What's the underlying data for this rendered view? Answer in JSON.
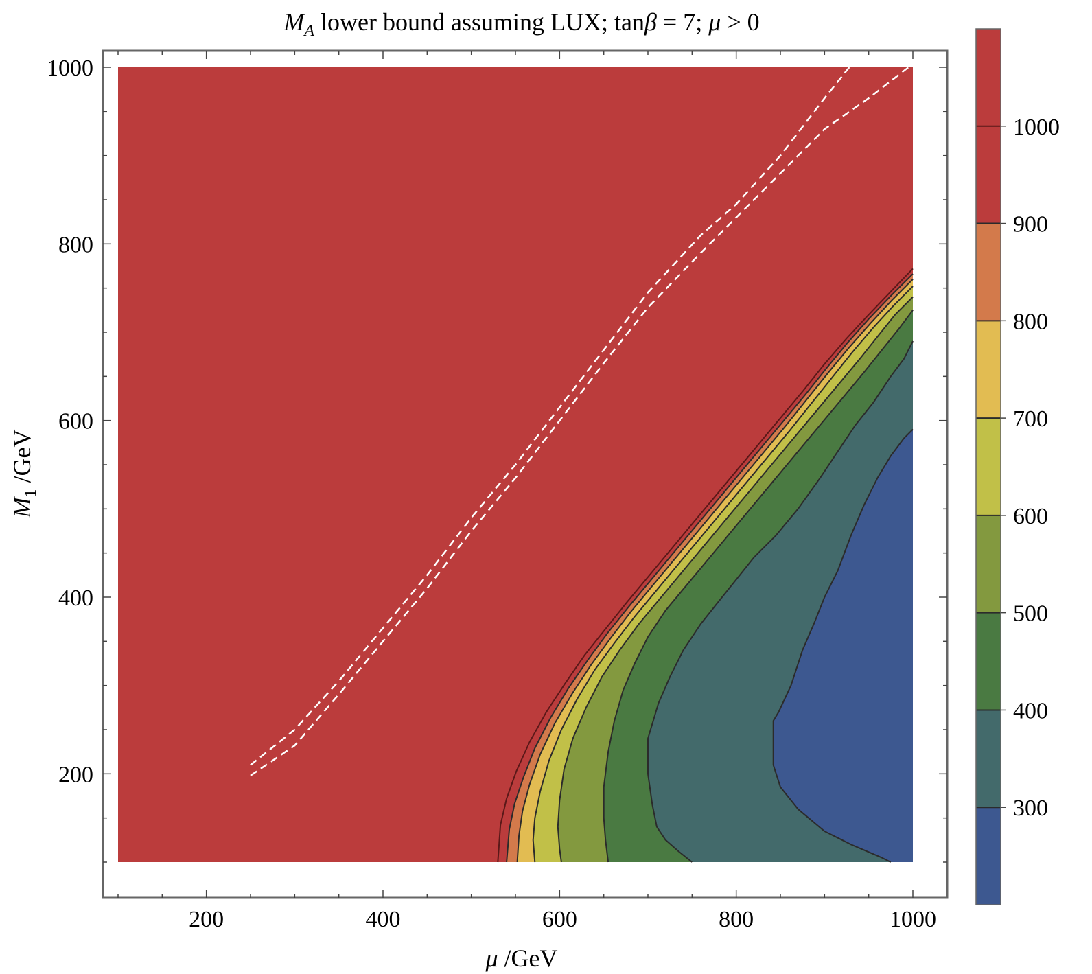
{
  "chart_data": {
    "type": "heatmap",
    "title": {
      "symbol": "M",
      "symbol_sub": "A",
      "text_a": " lower bound assuming LUX; tan",
      "beta": "β",
      "text_b": " = 7; ",
      "mu": "μ",
      "text_c": " > 0"
    },
    "xlabel": {
      "symbol": "μ",
      "unit": " /GeV"
    },
    "ylabel": {
      "symbol": "M",
      "symbol_sub": "1",
      "unit": " /GeV"
    },
    "xlim": [
      100,
      1000
    ],
    "ylim": [
      100,
      1000
    ],
    "x_ticks": [
      {
        "value": 200,
        "label": "200"
      },
      {
        "value": 400,
        "label": "400"
      },
      {
        "value": 600,
        "label": "600"
      },
      {
        "value": 800,
        "label": "800"
      },
      {
        "value": 1000,
        "label": "1000"
      }
    ],
    "y_ticks": [
      {
        "value": 200,
        "label": "200"
      },
      {
        "value": 400,
        "label": "400"
      },
      {
        "value": 600,
        "label": "600"
      },
      {
        "value": 800,
        "label": "800"
      },
      {
        "value": 1000,
        "label": "1000"
      }
    ],
    "colorbar": {
      "range": [
        200,
        1100
      ],
      "levels": [
        {
          "value": 300,
          "label": "300"
        },
        {
          "value": 400,
          "label": "400"
        },
        {
          "value": 500,
          "label": "500"
        },
        {
          "value": 600,
          "label": "600"
        },
        {
          "value": 700,
          "label": "700"
        },
        {
          "value": 800,
          "label": "800"
        },
        {
          "value": 900,
          "label": "900"
        },
        {
          "value": 1000,
          "label": "1000"
        }
      ],
      "bands": [
        {
          "from": 200,
          "to": 300,
          "color": "#3d5890"
        },
        {
          "from": 300,
          "to": 400,
          "color": "#436a6b"
        },
        {
          "from": 400,
          "to": 500,
          "color": "#4a7a42"
        },
        {
          "from": 500,
          "to": 600,
          "color": "#83993f"
        },
        {
          "from": 600,
          "to": 700,
          "color": "#c1c048"
        },
        {
          "from": 700,
          "to": 800,
          "color": "#e2bc52"
        },
        {
          "from": 800,
          "to": 900,
          "color": "#d37a4b"
        },
        {
          "from": 900,
          "to": 1000,
          "color": "#bb3c3c"
        },
        {
          "from": 1000,
          "to": 1100,
          "color": "#bb3c3c"
        }
      ]
    },
    "contour_edges": [
      {
        "level": 300,
        "pts": [
          [
            1000,
            590
          ],
          [
            990,
            580
          ],
          [
            975,
            560
          ],
          [
            960,
            535
          ],
          [
            945,
            505
          ],
          [
            930,
            470
          ],
          [
            915,
            430
          ],
          [
            900,
            400
          ],
          [
            888,
            370
          ],
          [
            875,
            340
          ],
          [
            862,
            300
          ],
          [
            848,
            270
          ],
          [
            842,
            260
          ],
          [
            842,
            210
          ],
          [
            850,
            185
          ],
          [
            870,
            160
          ],
          [
            900,
            135
          ],
          [
            930,
            120
          ],
          [
            965,
            105
          ],
          [
            975,
            100
          ]
        ]
      },
      {
        "level": 400,
        "pts": [
          [
            1000,
            690
          ],
          [
            990,
            670
          ],
          [
            975,
            650
          ],
          [
            955,
            620
          ],
          [
            935,
            595
          ],
          [
            915,
            565
          ],
          [
            895,
            535
          ],
          [
            870,
            500
          ],
          [
            845,
            470
          ],
          [
            820,
            445
          ],
          [
            800,
            420
          ],
          [
            780,
            395
          ],
          [
            760,
            370
          ],
          [
            740,
            340
          ],
          [
            725,
            310
          ],
          [
            712,
            280
          ],
          [
            700,
            240
          ],
          [
            700,
            200
          ],
          [
            705,
            165
          ],
          [
            710,
            140
          ],
          [
            720,
            125
          ],
          [
            735,
            112
          ],
          [
            750,
            100
          ]
        ]
      },
      {
        "level": 500,
        "pts": [
          [
            1000,
            725
          ],
          [
            985,
            705
          ],
          [
            965,
            680
          ],
          [
            945,
            655
          ],
          [
            920,
            625
          ],
          [
            895,
            595
          ],
          [
            870,
            565
          ],
          [
            845,
            535
          ],
          [
            820,
            505
          ],
          [
            795,
            475
          ],
          [
            770,
            445
          ],
          [
            745,
            415
          ],
          [
            720,
            385
          ],
          [
            700,
            355
          ],
          [
            685,
            325
          ],
          [
            672,
            295
          ],
          [
            662,
            260
          ],
          [
            655,
            225
          ],
          [
            650,
            185
          ],
          [
            650,
            150
          ],
          [
            652,
            125
          ],
          [
            655,
            100
          ]
        ]
      },
      {
        "level": 600,
        "pts": [
          [
            1000,
            740
          ],
          [
            980,
            720
          ],
          [
            960,
            695
          ],
          [
            940,
            670
          ],
          [
            915,
            640
          ],
          [
            890,
            610
          ],
          [
            865,
            580
          ],
          [
            840,
            550
          ],
          [
            815,
            520
          ],
          [
            790,
            490
          ],
          [
            765,
            460
          ],
          [
            740,
            430
          ],
          [
            715,
            400
          ],
          [
            690,
            370
          ],
          [
            668,
            340
          ],
          [
            648,
            310
          ],
          [
            630,
            275
          ],
          [
            615,
            240
          ],
          [
            605,
            205
          ],
          [
            600,
            170
          ],
          [
            598,
            140
          ],
          [
            600,
            115
          ],
          [
            602,
            100
          ]
        ]
      },
      {
        "level": 700,
        "pts": [
          [
            1000,
            752
          ],
          [
            978,
            730
          ],
          [
            955,
            705
          ],
          [
            932,
            678
          ],
          [
            908,
            648
          ],
          [
            884,
            618
          ],
          [
            860,
            588
          ],
          [
            835,
            558
          ],
          [
            810,
            528
          ],
          [
            785,
            498
          ],
          [
            760,
            468
          ],
          [
            735,
            438
          ],
          [
            710,
            408
          ],
          [
            685,
            378
          ],
          [
            662,
            348
          ],
          [
            640,
            318
          ],
          [
            620,
            285
          ],
          [
            602,
            250
          ],
          [
            588,
            215
          ],
          [
            578,
            180
          ],
          [
            572,
            150
          ],
          [
            570,
            125
          ],
          [
            572,
            100
          ]
        ]
      },
      {
        "level": 800,
        "pts": [
          [
            1000,
            760
          ],
          [
            976,
            736
          ],
          [
            952,
            710
          ],
          [
            928,
            683
          ],
          [
            904,
            654
          ],
          [
            880,
            624
          ],
          [
            856,
            594
          ],
          [
            831,
            564
          ],
          [
            806,
            534
          ],
          [
            781,
            504
          ],
          [
            756,
            474
          ],
          [
            731,
            444
          ],
          [
            706,
            414
          ],
          [
            681,
            384
          ],
          [
            658,
            354
          ],
          [
            636,
            324
          ],
          [
            615,
            292
          ],
          [
            595,
            258
          ],
          [
            578,
            222
          ],
          [
            566,
            188
          ],
          [
            558,
            158
          ],
          [
            554,
            130
          ],
          [
            552,
            100
          ]
        ]
      },
      {
        "level": 900,
        "pts": [
          [
            1000,
            766
          ],
          [
            975,
            741
          ],
          [
            950,
            715
          ],
          [
            926,
            688
          ],
          [
            902,
            659
          ],
          [
            878,
            629
          ],
          [
            853,
            599
          ],
          [
            828,
            569
          ],
          [
            803,
            539
          ],
          [
            778,
            509
          ],
          [
            753,
            479
          ],
          [
            728,
            449
          ],
          [
            703,
            419
          ],
          [
            678,
            389
          ],
          [
            654,
            359
          ],
          [
            632,
            329
          ],
          [
            610,
            297
          ],
          [
            590,
            264
          ],
          [
            572,
            229
          ],
          [
            559,
            196
          ],
          [
            549,
            166
          ],
          [
            543,
            137
          ],
          [
            540,
            100
          ]
        ]
      },
      {
        "level": 1000,
        "pts": [
          [
            1000,
            772
          ],
          [
            975,
            746
          ],
          [
            950,
            720
          ],
          [
            925,
            693
          ],
          [
            900,
            664
          ],
          [
            876,
            634
          ],
          [
            851,
            604
          ],
          [
            826,
            574
          ],
          [
            801,
            544
          ],
          [
            776,
            514
          ],
          [
            751,
            484
          ],
          [
            726,
            454
          ],
          [
            701,
            424
          ],
          [
            676,
            394
          ],
          [
            652,
            364
          ],
          [
            628,
            334
          ],
          [
            606,
            302
          ],
          [
            585,
            270
          ],
          [
            566,
            236
          ],
          [
            551,
            203
          ],
          [
            540,
            172
          ],
          [
            533,
            142
          ],
          [
            530,
            100
          ]
        ]
      }
    ],
    "dashed_lines": [
      {
        "pts": [
          [
            250,
            210
          ],
          [
            300,
            250
          ],
          [
            350,
            305
          ],
          [
            400,
            365
          ],
          [
            450,
            425
          ],
          [
            500,
            490
          ],
          [
            550,
            550
          ],
          [
            600,
            615
          ],
          [
            650,
            680
          ],
          [
            700,
            745
          ],
          [
            760,
            810
          ],
          [
            800,
            845
          ],
          [
            850,
            900
          ],
          [
            900,
            965
          ],
          [
            928,
            1000
          ]
        ]
      },
      {
        "pts": [
          [
            250,
            198
          ],
          [
            300,
            232
          ],
          [
            350,
            290
          ],
          [
            400,
            350
          ],
          [
            450,
            410
          ],
          [
            500,
            475
          ],
          [
            550,
            535
          ],
          [
            600,
            600
          ],
          [
            650,
            665
          ],
          [
            700,
            728
          ],
          [
            760,
            790
          ],
          [
            800,
            830
          ],
          [
            850,
            880
          ],
          [
            900,
            930
          ],
          [
            950,
            965
          ],
          [
            995,
            1000
          ]
        ]
      }
    ]
  }
}
